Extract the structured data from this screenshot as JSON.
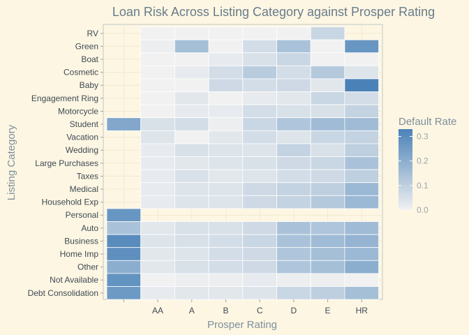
{
  "chart_data": {
    "type": "heatmap",
    "title": "Loan Risk Across Listing Category against Prosper Rating",
    "xlabel": "Prosper Rating",
    "ylabel": "Listing Category",
    "x_categories": [
      "",
      "AA",
      "A",
      "B",
      "C",
      "D",
      "E",
      "HR"
    ],
    "y_categories": [
      "RV",
      "Green",
      "Boat",
      "Cosmetic",
      "Baby",
      "Engagement Ring",
      "Motorcycle",
      "Student",
      "Vacation",
      "Wedding",
      "Large Purchases",
      "Taxes",
      "Medical",
      "Household Exp",
      "Personal",
      "Auto",
      "Business",
      "Home Imp",
      "Other",
      "Not Available",
      "Debt Consolidation"
    ],
    "values": [
      [
        null,
        0.0,
        0.0,
        0.0,
        0.0,
        0.0,
        0.08,
        null
      ],
      [
        null,
        0.01,
        0.15,
        0.0,
        0.06,
        0.14,
        0.0,
        0.27
      ],
      [
        null,
        0.0,
        0.0,
        0.02,
        0.05,
        0.08,
        0.0,
        0.0
      ],
      [
        null,
        0.0,
        0.02,
        0.06,
        0.11,
        0.06,
        0.12,
        0.04
      ],
      [
        null,
        0.0,
        0.0,
        0.07,
        0.06,
        0.07,
        0.03,
        0.33
      ],
      [
        null,
        0.0,
        0.03,
        0.0,
        0.02,
        0.03,
        0.08,
        0.06
      ],
      [
        null,
        0.0,
        0.02,
        0.02,
        0.06,
        0.05,
        0.05,
        0.09
      ],
      [
        0.22,
        0.05,
        0.06,
        0.01,
        0.08,
        0.13,
        0.16,
        0.16
      ],
      [
        null,
        0.04,
        0.0,
        0.03,
        0.06,
        0.04,
        0.08,
        0.09
      ],
      [
        null,
        0.02,
        0.05,
        0.04,
        0.04,
        0.09,
        0.05,
        0.1
      ],
      [
        null,
        0.02,
        0.03,
        0.04,
        0.05,
        0.07,
        0.08,
        0.14
      ],
      [
        null,
        0.02,
        0.05,
        0.03,
        0.04,
        0.06,
        0.07,
        0.1
      ],
      [
        null,
        0.02,
        0.04,
        0.04,
        0.07,
        0.09,
        0.1,
        0.17
      ],
      [
        null,
        0.02,
        0.04,
        0.04,
        0.07,
        0.09,
        0.12,
        0.17
      ],
      [
        0.27,
        null,
        null,
        null,
        null,
        null,
        null,
        null
      ],
      [
        0.14,
        0.03,
        0.05,
        0.05,
        0.07,
        0.14,
        0.13,
        0.16
      ],
      [
        0.3,
        0.04,
        0.05,
        0.06,
        0.08,
        0.14,
        0.16,
        0.18
      ],
      [
        0.29,
        0.03,
        0.04,
        0.06,
        0.07,
        0.13,
        0.15,
        0.17
      ],
      [
        0.2,
        0.03,
        0.05,
        0.06,
        0.07,
        0.13,
        0.15,
        0.2
      ],
      [
        0.28,
        0.0,
        0.01,
        0.01,
        0.02,
        0.01,
        0.01,
        0.0
      ],
      [
        0.26,
        0.02,
        0.03,
        0.03,
        0.04,
        0.08,
        0.1,
        0.15
      ]
    ],
    "color_range": [
      0.0,
      0.33
    ],
    "color_low": "#f1f1f1",
    "color_high": "#4a82b8",
    "legend": {
      "title": "Default Rate",
      "ticks": [
        0.0,
        0.1,
        0.2,
        0.3
      ],
      "tick_labels": [
        "0.0",
        "0.1",
        "0.2",
        "0.3"
      ],
      "placement": "right"
    },
    "grid": true
  }
}
